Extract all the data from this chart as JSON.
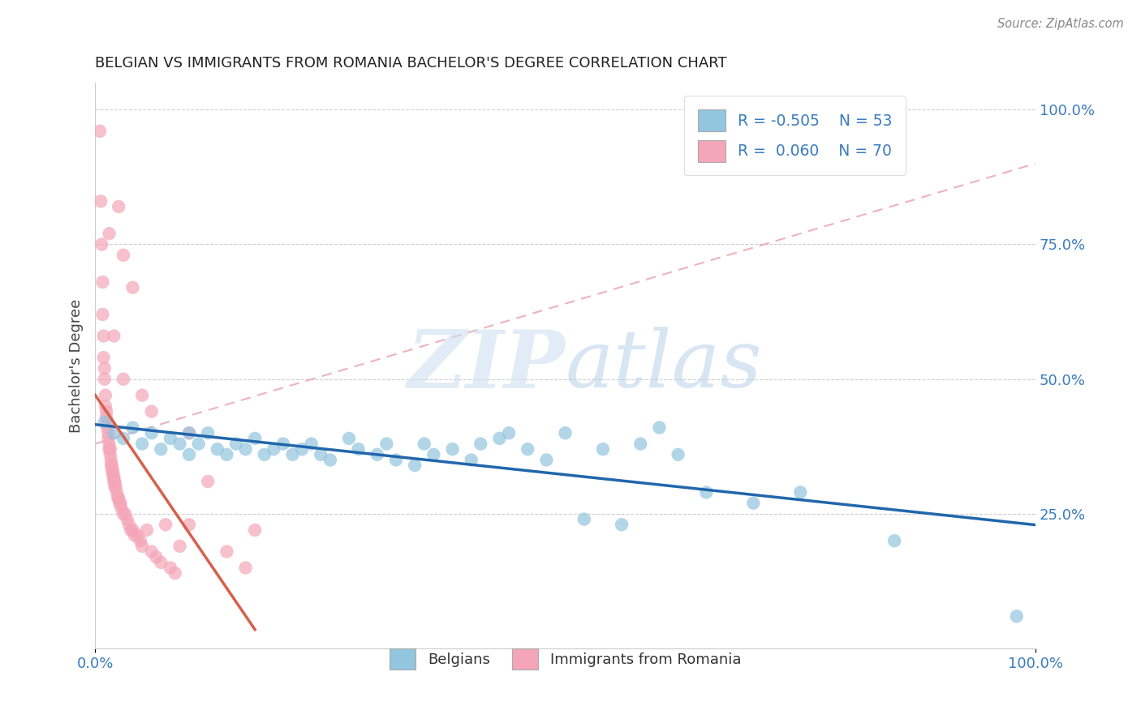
{
  "title": "BELGIAN VS IMMIGRANTS FROM ROMANIA BACHELOR'S DEGREE CORRELATION CHART",
  "source": "Source: ZipAtlas.com",
  "ylabel": "Bachelor's Degree",
  "ytick_vals": [
    0.25,
    0.5,
    0.75,
    1.0
  ],
  "ytick_labels": [
    "25.0%",
    "50.0%",
    "75.0%",
    "100.0%"
  ],
  "xtick_vals": [
    0.0,
    1.0
  ],
  "xtick_labels": [
    "0.0%",
    "100.0%"
  ],
  "legend_label1": "Belgians",
  "legend_label2": "Immigrants from Romania",
  "legend_r1": "R = -0.505",
  "legend_n1": "N = 53",
  "legend_r2": "R =  0.060",
  "legend_n2": "N = 70",
  "blue_color": "#92c5de",
  "pink_color": "#f4a6b8",
  "blue_line_color": "#2166ac",
  "pink_line_color": "#d6604d",
  "dash_line_color": "#f4a6b8",
  "watermark_zip": "ZIP",
  "watermark_atlas": "atlas",
  "watermark_color": "#d0e4f0",
  "background_color": "#ffffff",
  "grid_color": "#bbbbbb",
  "blue_scatter": [
    [
      0.01,
      0.42
    ],
    [
      0.02,
      0.4
    ],
    [
      0.03,
      0.39
    ],
    [
      0.04,
      0.41
    ],
    [
      0.05,
      0.38
    ],
    [
      0.06,
      0.4
    ],
    [
      0.07,
      0.37
    ],
    [
      0.08,
      0.39
    ],
    [
      0.09,
      0.38
    ],
    [
      0.1,
      0.4
    ],
    [
      0.1,
      0.36
    ],
    [
      0.11,
      0.38
    ],
    [
      0.12,
      0.4
    ],
    [
      0.13,
      0.37
    ],
    [
      0.14,
      0.36
    ],
    [
      0.15,
      0.38
    ],
    [
      0.16,
      0.37
    ],
    [
      0.17,
      0.39
    ],
    [
      0.18,
      0.36
    ],
    [
      0.19,
      0.37
    ],
    [
      0.2,
      0.38
    ],
    [
      0.21,
      0.36
    ],
    [
      0.22,
      0.37
    ],
    [
      0.23,
      0.38
    ],
    [
      0.24,
      0.36
    ],
    [
      0.25,
      0.35
    ],
    [
      0.27,
      0.39
    ],
    [
      0.28,
      0.37
    ],
    [
      0.3,
      0.36
    ],
    [
      0.31,
      0.38
    ],
    [
      0.32,
      0.35
    ],
    [
      0.34,
      0.34
    ],
    [
      0.35,
      0.38
    ],
    [
      0.36,
      0.36
    ],
    [
      0.38,
      0.37
    ],
    [
      0.4,
      0.35
    ],
    [
      0.41,
      0.38
    ],
    [
      0.43,
      0.39
    ],
    [
      0.44,
      0.4
    ],
    [
      0.46,
      0.37
    ],
    [
      0.48,
      0.35
    ],
    [
      0.5,
      0.4
    ],
    [
      0.52,
      0.24
    ],
    [
      0.54,
      0.37
    ],
    [
      0.56,
      0.23
    ],
    [
      0.58,
      0.38
    ],
    [
      0.6,
      0.41
    ],
    [
      0.62,
      0.36
    ],
    [
      0.65,
      0.29
    ],
    [
      0.7,
      0.27
    ],
    [
      0.75,
      0.29
    ],
    [
      0.85,
      0.2
    ],
    [
      0.98,
      0.06
    ]
  ],
  "pink_scatter": [
    [
      0.005,
      0.96
    ],
    [
      0.006,
      0.83
    ],
    [
      0.007,
      0.75
    ],
    [
      0.008,
      0.68
    ],
    [
      0.008,
      0.62
    ],
    [
      0.009,
      0.58
    ],
    [
      0.009,
      0.54
    ],
    [
      0.01,
      0.52
    ],
    [
      0.01,
      0.5
    ],
    [
      0.011,
      0.47
    ],
    [
      0.011,
      0.45
    ],
    [
      0.012,
      0.44
    ],
    [
      0.012,
      0.43
    ],
    [
      0.013,
      0.42
    ],
    [
      0.013,
      0.41
    ],
    [
      0.014,
      0.4
    ],
    [
      0.014,
      0.39
    ],
    [
      0.015,
      0.38
    ],
    [
      0.015,
      0.37
    ],
    [
      0.016,
      0.37
    ],
    [
      0.016,
      0.36
    ],
    [
      0.017,
      0.35
    ],
    [
      0.017,
      0.34
    ],
    [
      0.018,
      0.34
    ],
    [
      0.018,
      0.33
    ],
    [
      0.019,
      0.33
    ],
    [
      0.019,
      0.32
    ],
    [
      0.02,
      0.32
    ],
    [
      0.02,
      0.31
    ],
    [
      0.021,
      0.31
    ],
    [
      0.021,
      0.3
    ],
    [
      0.022,
      0.3
    ],
    [
      0.023,
      0.29
    ],
    [
      0.024,
      0.28
    ],
    [
      0.025,
      0.28
    ],
    [
      0.026,
      0.27
    ],
    [
      0.027,
      0.27
    ],
    [
      0.028,
      0.26
    ],
    [
      0.03,
      0.25
    ],
    [
      0.032,
      0.25
    ],
    [
      0.034,
      0.24
    ],
    [
      0.036,
      0.23
    ],
    [
      0.038,
      0.22
    ],
    [
      0.04,
      0.22
    ],
    [
      0.042,
      0.21
    ],
    [
      0.045,
      0.21
    ],
    [
      0.048,
      0.2
    ],
    [
      0.05,
      0.19
    ],
    [
      0.055,
      0.22
    ],
    [
      0.06,
      0.18
    ],
    [
      0.065,
      0.17
    ],
    [
      0.07,
      0.16
    ],
    [
      0.075,
      0.23
    ],
    [
      0.08,
      0.15
    ],
    [
      0.085,
      0.14
    ],
    [
      0.09,
      0.19
    ],
    [
      0.1,
      0.23
    ],
    [
      0.12,
      0.31
    ],
    [
      0.14,
      0.18
    ],
    [
      0.16,
      0.15
    ],
    [
      0.17,
      0.22
    ],
    [
      0.03,
      0.73
    ],
    [
      0.025,
      0.82
    ],
    [
      0.04,
      0.67
    ],
    [
      0.015,
      0.77
    ],
    [
      0.02,
      0.58
    ],
    [
      0.03,
      0.5
    ],
    [
      0.1,
      0.4
    ],
    [
      0.05,
      0.47
    ],
    [
      0.06,
      0.44
    ]
  ],
  "xlim": [
    0.0,
    1.0
  ],
  "ylim": [
    0.0,
    1.05
  ]
}
